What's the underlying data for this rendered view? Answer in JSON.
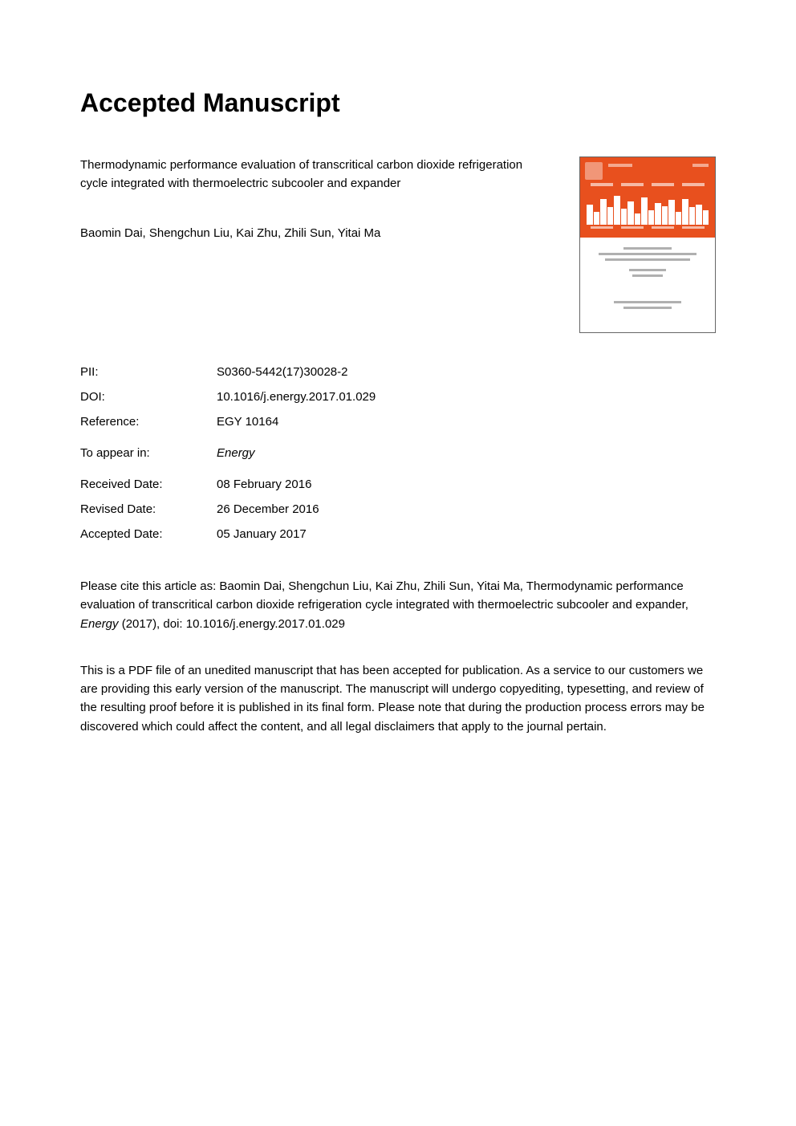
{
  "page_title": "Accepted Manuscript",
  "article_title": "Thermodynamic performance evaluation of transcritical carbon dioxide refrigeration cycle integrated with thermoelectric subcooler and expander",
  "authors": "Baomin Dai, Shengchun Liu, Kai Zhu, Zhili Sun, Yitai Ma",
  "meta": {
    "pii_label": "PII:",
    "pii_value": "S0360-5442(17)30028-2",
    "doi_label": "DOI:",
    "doi_value": "10.1016/j.energy.2017.01.029",
    "reference_label": "Reference:",
    "reference_value": "EGY 10164",
    "appear_label": "To appear in:",
    "appear_value": "Energy",
    "received_label": "Received Date:",
    "received_value": "08 February 2016",
    "revised_label": "Revised Date:",
    "revised_value": "26 December 2016",
    "accepted_label": "Accepted Date:",
    "accepted_value": "05 January 2017"
  },
  "citation": {
    "prefix": "Please cite this article as: Baomin Dai, Shengchun Liu, Kai Zhu, Zhili Sun, Yitai Ma, Thermodynamic performance evaluation of transcritical carbon dioxide refrigeration cycle integrated with thermoelectric subcooler and expander, ",
    "journal": "Energy",
    "suffix": " (2017), doi: 10.1016/j.energy.2017.01.029"
  },
  "disclaimer": "This is a PDF file of an unedited manuscript that has been accepted for publication. As a service to our customers we are providing this early version of the manuscript. The manuscript will undergo copyediting, typesetting, and review of the resulting proof before it is published in its final form. Please note that during the production process errors may be discovered which could affect the content, and all legal disclaimers that apply to the journal pertain.",
  "cover": {
    "primary_color": "#e8501e",
    "bar_heights_pct": [
      70,
      45,
      90,
      60,
      100,
      55,
      80,
      40,
      95,
      50,
      75,
      65,
      85,
      45,
      90,
      60,
      70,
      50
    ]
  },
  "colors": {
    "text": "#000000",
    "background": "#ffffff",
    "cover_border": "#666666",
    "cover_textline": "#b0b0b0"
  },
  "typography": {
    "title_fontsize": 32,
    "body_fontsize": 15,
    "font_family": "Arial, Helvetica, sans-serif"
  }
}
